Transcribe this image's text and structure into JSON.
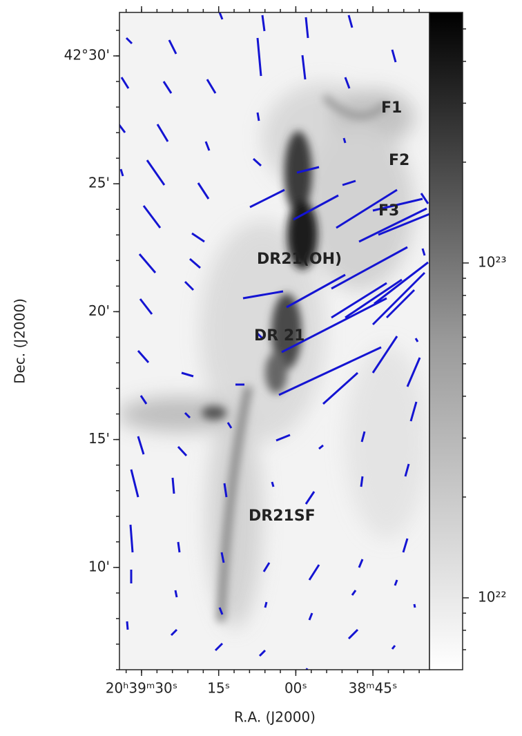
{
  "chart_data": {
    "type": "image",
    "xlabel": "R.A. (J2000)",
    "ylabel": "Dec. (J2000)",
    "xlim": [
      94.3,
      34.0
    ],
    "xticks": [
      {
        "value": 90,
        "label": "20ʰ39ᵐ30ˢ"
      },
      {
        "value": 75,
        "label": "15ˢ"
      },
      {
        "value": 60,
        "label": "00ˢ"
      },
      {
        "value": 45,
        "label": "38ᵐ45ˢ"
      }
    ],
    "ylim": [
      6.0,
      31.7
    ],
    "yticks": [
      {
        "value": 30,
        "label": "42°30'"
      },
      {
        "value": 25,
        "label": "25'"
      },
      {
        "value": 20,
        "label": "20'"
      },
      {
        "value": 15,
        "label": "15'"
      },
      {
        "value": 10,
        "label": "10'"
      }
    ],
    "vector_color": "#1414d2",
    "annotation_color": "#e8141c",
    "colorbar": {
      "log": true,
      "lim": [
        6.1e+21,
        5.6e+23
      ],
      "ticks": [
        {
          "value": 1e+22,
          "label": "10²²"
        },
        {
          "value": 1e+23,
          "label": "10²³"
        }
      ]
    },
    "annotations": [
      "F1",
      "F2",
      "F3",
      "DR21(OH)",
      "DR 21",
      "DR21SF"
    ]
  }
}
